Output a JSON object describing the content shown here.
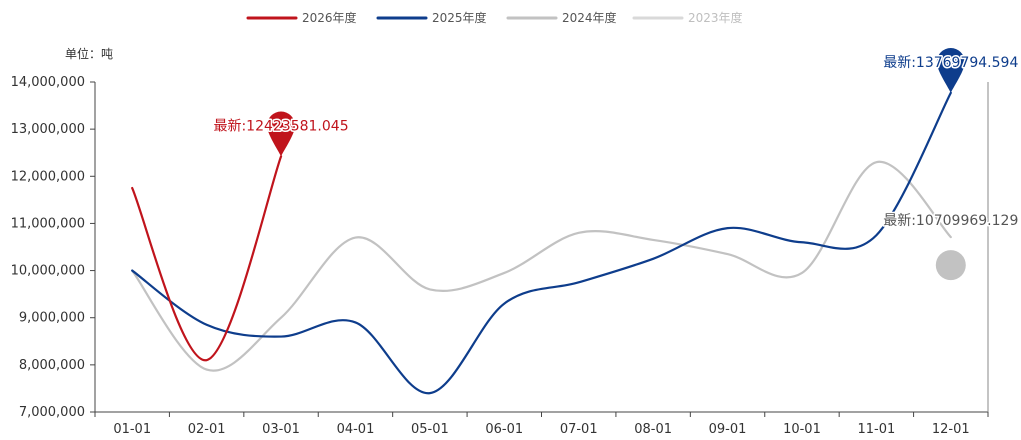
{
  "chart_data": {
    "type": "line",
    "unit_label": "单位：吨",
    "categories": [
      "01-01",
      "02-01",
      "03-01",
      "04-01",
      "05-01",
      "06-01",
      "07-01",
      "08-01",
      "09-01",
      "10-01",
      "11-01",
      "12-01"
    ],
    "ylim": [
      7000000,
      14000000
    ],
    "y_ticks": [
      7000000,
      8000000,
      9000000,
      10000000,
      11000000,
      12000000,
      13000000,
      14000000
    ],
    "y_tick_labels": [
      "7,000,000",
      "8,000,000",
      "9,000,000",
      "10,000,000",
      "11,000,000",
      "12,000,000",
      "13,000,000",
      "14,000,000"
    ],
    "grid": false,
    "legend_position": "top",
    "series": [
      {
        "name": "2026年度",
        "color": "#c0141c",
        "values": [
          11750000,
          8100000,
          12423581.045,
          null,
          null,
          null,
          null,
          null,
          null,
          null,
          null,
          null
        ],
        "marker_label": "最新:12423581.045",
        "marker_index": 2
      },
      {
        "name": "2025年度",
        "color": "#0e3d8c",
        "values": [
          10000000,
          8850000,
          8600000,
          8900000,
          7400000,
          9300000,
          9750000,
          10250000,
          10900000,
          10600000,
          10750000,
          13769794.594
        ],
        "marker_label": "最新:13769794.594",
        "marker_index": 11
      },
      {
        "name": "2024年度",
        "color": "#c2c2c2",
        "values": [
          10000000,
          7900000,
          9000000,
          10700000,
          9600000,
          9950000,
          10800000,
          10650000,
          10350000,
          9950000,
          12300000,
          10709969.129
        ],
        "marker_label": "最新:10709969.129",
        "marker_index": 11
      },
      {
        "name": "2023年度",
        "color": "#d9d9d9",
        "values": [
          null,
          null,
          null,
          null,
          null,
          null,
          null,
          null,
          null,
          null,
          null,
          null
        ],
        "marker_label": null,
        "marker_index": null
      }
    ]
  }
}
